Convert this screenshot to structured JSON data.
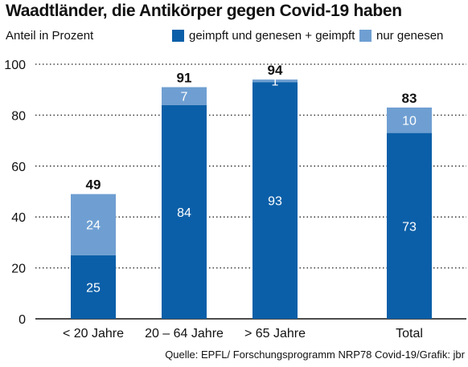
{
  "title": "Waadtländer, die Antikörper gegen Covid-19 haben",
  "unit_label": "Anteil in Prozent",
  "source": "Quelle: EPFL/ Forschungsprogramm NRP78 Covid-19/Grafik: jbr",
  "colors": {
    "dark": "#0b5fa8",
    "light": "#6f9fd2",
    "grid": "#222222"
  },
  "chart_data": {
    "type": "bar",
    "stacked": true,
    "title": "Waadtländer, die Antikörper gegen Covid-19 haben",
    "ylabel": "Anteil in Prozent",
    "ylim": [
      0,
      100
    ],
    "yticks": [
      0,
      20,
      40,
      60,
      80,
      100
    ],
    "grid": true,
    "legend_position": "top",
    "categories": [
      "< 20 Jahre",
      "20 – 64 Jahre",
      "> 65 Jahre",
      "Total"
    ],
    "series": [
      {
        "name": "geimpft und genesen + geimpft",
        "values": [
          25,
          84,
          93,
          73
        ]
      },
      {
        "name": "nur genesen",
        "values": [
          24,
          7,
          1,
          10
        ]
      }
    ],
    "totals": [
      49,
      91,
      94,
      83
    ]
  }
}
